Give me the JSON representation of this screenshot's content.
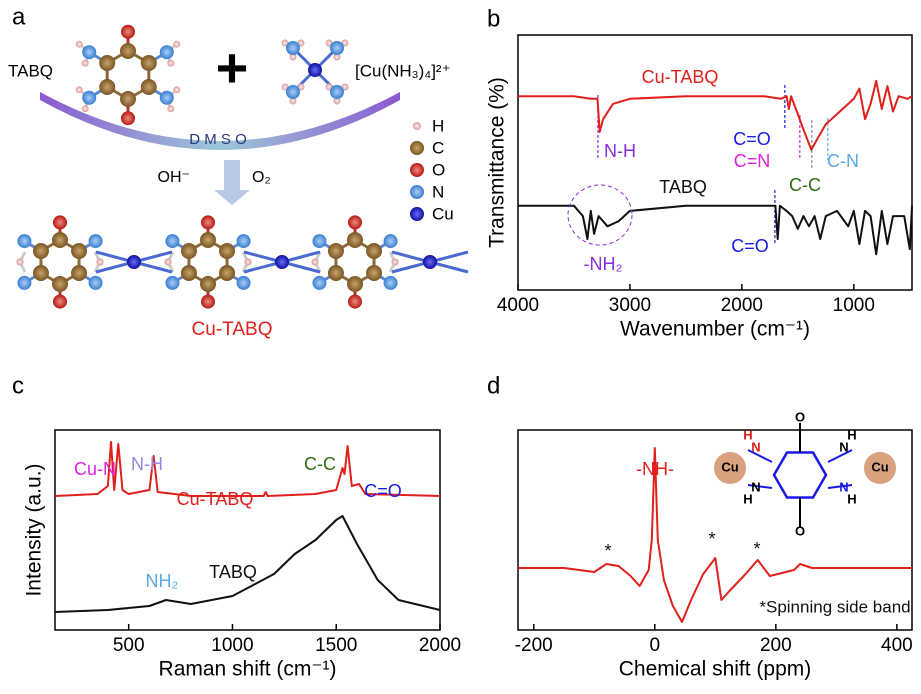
{
  "panel_a": {
    "label": "a",
    "reactant1": "TABQ",
    "plus": "+",
    "reactant2": "[Cu(NH₃)₄]²⁺",
    "solvent": "D M S O",
    "reagent1": "OH⁻",
    "reagent2": "O₂",
    "legend": [
      "H",
      "C",
      "O",
      "N",
      "Cu"
    ],
    "product": "Cu-TABQ"
  },
  "chart_data": [
    {
      "type": "line",
      "panel_label": "b",
      "xlabel": "Wavenumber (cm⁻¹)",
      "ylabel": "Transmittance (%)",
      "xlim": [
        4000,
        480
      ],
      "ylim": [
        0,
        1
      ],
      "xticks": [
        4000,
        3000,
        2000,
        1000
      ],
      "series": [
        {
          "name": "Cu-TABQ",
          "color": "#e0201b",
          "x": [
            4000,
            3500,
            3350,
            3290,
            3270,
            3240,
            3150,
            3000,
            2500,
            2100,
            2000,
            1800,
            1650,
            1600,
            1580,
            1560,
            1500,
            1450,
            1380,
            1330,
            1250,
            1150,
            1000,
            950,
            900,
            850,
            800,
            750,
            700,
            650,
            600,
            520,
            480
          ],
          "values": [
            0.76,
            0.76,
            0.75,
            0.75,
            0.62,
            0.67,
            0.73,
            0.75,
            0.76,
            0.76,
            0.76,
            0.76,
            0.75,
            0.76,
            0.71,
            0.76,
            0.69,
            0.63,
            0.55,
            0.59,
            0.65,
            0.69,
            0.75,
            0.79,
            0.67,
            0.73,
            0.82,
            0.71,
            0.8,
            0.7,
            0.76,
            0.75,
            0.76
          ]
        },
        {
          "name": "TABQ",
          "color": "#111111",
          "x": [
            4000,
            3500,
            3420,
            3380,
            3350,
            3320,
            3280,
            3200,
            3100,
            3000,
            2500,
            2000,
            1700,
            1680,
            1660,
            1600,
            1550,
            1500,
            1450,
            1400,
            1350,
            1300,
            1250,
            1150,
            1050,
            1000,
            950,
            900,
            850,
            800,
            750,
            700,
            650,
            600,
            550,
            500,
            480
          ],
          "values": [
            0.33,
            0.33,
            0.29,
            0.2,
            0.31,
            0.22,
            0.29,
            0.25,
            0.27,
            0.31,
            0.33,
            0.33,
            0.33,
            0.2,
            0.33,
            0.31,
            0.29,
            0.24,
            0.29,
            0.25,
            0.29,
            0.2,
            0.29,
            0.31,
            0.25,
            0.31,
            0.18,
            0.31,
            0.29,
            0.14,
            0.31,
            0.18,
            0.29,
            0.29,
            0.29,
            0.16,
            0.33
          ]
        }
      ],
      "markers": [
        {
          "x": 3286,
          "color": "#8a2be2"
        },
        {
          "x": 1616,
          "color": "#1a1ae6"
        },
        {
          "x": 1482,
          "color": "#e020e0"
        },
        {
          "x": 1375,
          "color": "#888888"
        },
        {
          "x": 1232,
          "color": "#5aa9e6"
        },
        {
          "x": 1705,
          "color": "#1a1ae6"
        }
      ],
      "annotations": [
        {
          "text": "Cu-TABQ",
          "color": "#e0201b"
        },
        {
          "text": "N-H",
          "color": "#8a2be2"
        },
        {
          "text": "C=O",
          "color": "#1a1ae6"
        },
        {
          "text": "C=N",
          "color": "#e020e0"
        },
        {
          "text": "C-C",
          "color": "#2e6b10"
        },
        {
          "text": "C-N",
          "color": "#5aa9e6"
        },
        {
          "text": "TABQ",
          "color": "#111111"
        },
        {
          "text": "-NH₂",
          "color": "#8a2be2"
        },
        {
          "text": "C=O",
          "color": "#1a1ae6"
        }
      ]
    },
    {
      "type": "line",
      "panel_label": "c",
      "xlabel": "Raman shift (cm⁻¹)",
      "ylabel": "Intensity (a.u.)",
      "xlim": [
        145,
        2000
      ],
      "ylim": [
        0,
        1
      ],
      "xticks": [
        500,
        1000,
        1500,
        2000
      ],
      "series": [
        {
          "name": "Cu-TABQ",
          "color": "#e0201b",
          "x": [
            145,
            350,
            400,
            415,
            430,
            450,
            470,
            500,
            600,
            620,
            640,
            800,
            1150,
            1160,
            1170,
            1400,
            1500,
            1530,
            1540,
            1555,
            1575,
            1610,
            1640,
            2000
          ],
          "values": [
            0.67,
            0.68,
            0.72,
            0.94,
            0.7,
            0.93,
            0.7,
            0.68,
            0.7,
            0.87,
            0.69,
            0.67,
            0.67,
            0.69,
            0.67,
            0.68,
            0.7,
            0.81,
            0.78,
            0.92,
            0.72,
            0.73,
            0.68,
            0.67
          ]
        },
        {
          "name": "TABQ",
          "color": "#111111",
          "x": [
            145,
            400,
            600,
            680,
            800,
            1000,
            1200,
            1300,
            1400,
            1500,
            1530,
            1600,
            1700,
            1800,
            2000
          ],
          "values": [
            0.09,
            0.1,
            0.12,
            0.15,
            0.13,
            0.17,
            0.28,
            0.38,
            0.45,
            0.55,
            0.57,
            0.43,
            0.25,
            0.15,
            0.1
          ]
        }
      ],
      "annotations": [
        {
          "text": "Cu-N",
          "color": "#e020e0"
        },
        {
          "text": "N-H",
          "color": "#9a86e0"
        },
        {
          "text": "Cu-TABQ",
          "color": "#e0201b"
        },
        {
          "text": "C-C",
          "color": "#2e6b10"
        },
        {
          "text": "C=O",
          "color": "#1a1ae6"
        },
        {
          "text": "NH₂",
          "color": "#5aa9e6"
        },
        {
          "text": "TABQ",
          "color": "#111111"
        }
      ]
    },
    {
      "type": "line",
      "panel_label": "d",
      "xlabel": "Chemical shift (ppm)",
      "xlim": [
        -226,
        425
      ],
      "ylim": [
        0,
        1
      ],
      "xticks": [
        -200,
        0,
        200,
        400
      ],
      "series": [
        {
          "color": "#e0201b",
          "x": [
            -226,
            -150,
            -100,
            -80,
            -60,
            -40,
            -25,
            -10,
            -5,
            0,
            5,
            15,
            30,
            45,
            60,
            80,
            90,
            100,
            110,
            125,
            150,
            170,
            190,
            230,
            240,
            260,
            425
          ],
          "values": [
            0.31,
            0.31,
            0.29,
            0.33,
            0.32,
            0.27,
            0.22,
            0.3,
            0.45,
            0.91,
            0.45,
            0.25,
            0.12,
            0.04,
            0.15,
            0.28,
            0.32,
            0.36,
            0.15,
            0.2,
            0.28,
            0.35,
            0.27,
            0.3,
            0.33,
            0.31,
            0.31
          ]
        }
      ],
      "annotations": [
        {
          "text": "-NH-",
          "color": "#e0201b"
        },
        {
          "text": "*",
          "color": "#111111"
        },
        {
          "text": "*",
          "color": "#111111"
        },
        {
          "text": "*",
          "color": "#111111"
        },
        {
          "text": "*Spinning side band",
          "color": "#111111"
        }
      ],
      "inset_labels": [
        "Cu",
        "Cu",
        "O",
        "O",
        "N",
        "H",
        "N",
        "H",
        "N",
        "H",
        "N",
        "H"
      ]
    }
  ]
}
